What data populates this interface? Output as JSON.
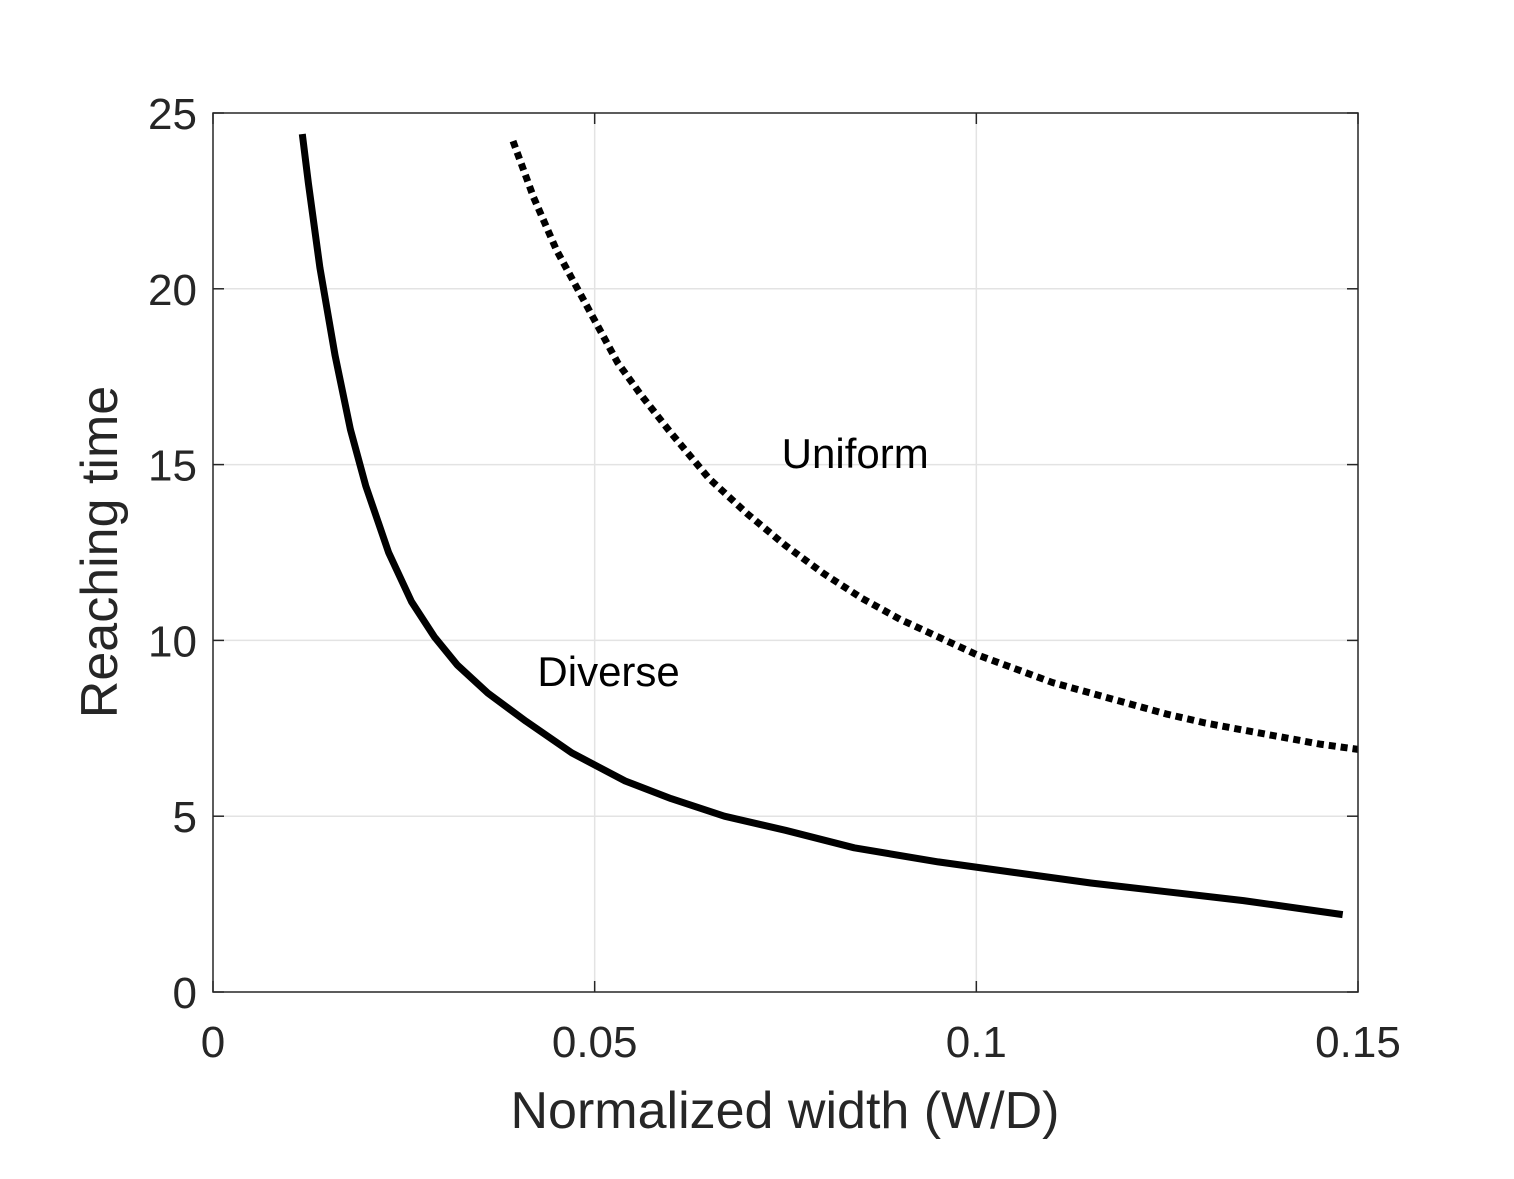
{
  "chart_data": {
    "type": "line",
    "title": "",
    "xlabel": "Normalized width (W/D)",
    "ylabel": "Reaching time",
    "xlim": [
      0,
      0.15
    ],
    "ylim": [
      0,
      25
    ],
    "xticks": [
      0,
      0.05,
      0.1,
      0.15
    ],
    "xtick_labels": [
      "0",
      "0.05",
      "0.1",
      "0.15"
    ],
    "yticks": [
      0,
      5,
      10,
      15,
      20,
      25
    ],
    "ytick_labels": [
      "0",
      "5",
      "10",
      "15",
      "20",
      "25"
    ],
    "grid": true,
    "series": [
      {
        "name": "Diverse",
        "style": "solid",
        "color": "#000000",
        "x": [
          0.0117,
          0.0125,
          0.014,
          0.016,
          0.018,
          0.02,
          0.023,
          0.026,
          0.029,
          0.032,
          0.036,
          0.041,
          0.047,
          0.054,
          0.06,
          0.067,
          0.075,
          0.084,
          0.095,
          0.105,
          0.115,
          0.125,
          0.135,
          0.148
        ],
        "y": [
          24.4,
          23.0,
          20.6,
          18.1,
          16.0,
          14.4,
          12.5,
          11.1,
          10.1,
          9.3,
          8.5,
          7.7,
          6.8,
          6.0,
          5.5,
          5.0,
          4.6,
          4.1,
          3.7,
          3.4,
          3.1,
          2.85,
          2.6,
          2.2
        ]
      },
      {
        "name": "Uniform",
        "style": "dotted",
        "color": "#000000",
        "x": [
          0.0393,
          0.042,
          0.045,
          0.048,
          0.05,
          0.053,
          0.056,
          0.06,
          0.065,
          0.07,
          0.075,
          0.08,
          0.085,
          0.09,
          0.095,
          0.1,
          0.105,
          0.11,
          0.115,
          0.12,
          0.125,
          0.13,
          0.135,
          0.14,
          0.145,
          0.15
        ],
        "y": [
          24.2,
          22.6,
          21.1,
          19.9,
          19.1,
          17.9,
          17.0,
          15.9,
          14.6,
          13.6,
          12.7,
          11.9,
          11.2,
          10.6,
          10.1,
          9.6,
          9.2,
          8.8,
          8.5,
          8.2,
          7.9,
          7.65,
          7.45,
          7.25,
          7.05,
          6.9
        ]
      }
    ],
    "annotations": [
      {
        "text": "Uniform",
        "x": 0.0745,
        "y": 14.9
      },
      {
        "text": "Diverse",
        "x": 0.0425,
        "y": 8.7
      }
    ]
  }
}
